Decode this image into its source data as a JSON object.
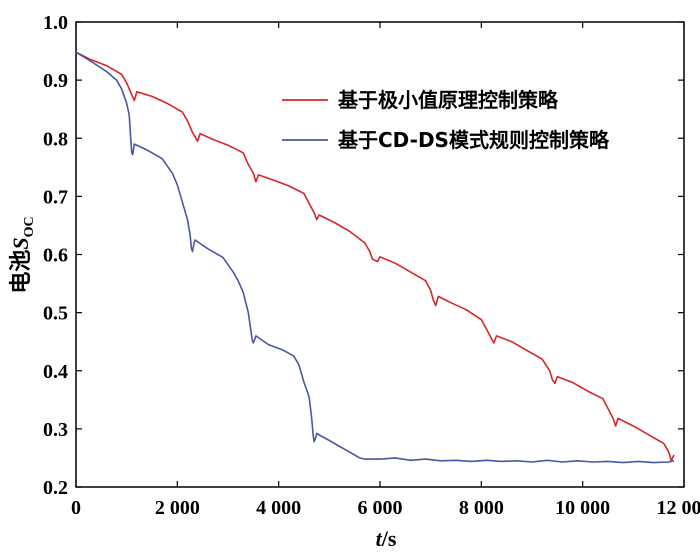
{
  "chart_data": {
    "type": "line",
    "title": "",
    "xlabel": "t/s",
    "xlabel_italic": "t",
    "xlabel_unit": "/s",
    "ylabel": "电池SOC",
    "ylabel_prefix": "电池",
    "ylabel_symbol": "S",
    "ylabel_sub": "OC",
    "xlim": [
      0,
      12000
    ],
    "ylim": [
      0.2,
      1.0
    ],
    "x_ticks": [
      0,
      2000,
      4000,
      6000,
      8000,
      10000,
      12000
    ],
    "x_tick_labels": [
      "0",
      "2 000",
      "4 000",
      "6 000",
      "8 000",
      "10 000",
      "12 000"
    ],
    "y_ticks": [
      0.2,
      0.3,
      0.4,
      0.5,
      0.6,
      0.7,
      0.8,
      0.9,
      1.0
    ],
    "y_tick_labels": [
      "0.2",
      "0.3",
      "0.4",
      "0.5",
      "0.6",
      "0.7",
      "0.8",
      "0.9",
      "1.0"
    ],
    "grid": false,
    "legend_position": "top-right",
    "series": [
      {
        "name": "基于极小值原理控制策略",
        "color": "#d62728",
        "x": [
          0,
          300,
          600,
          900,
          1000,
          1100,
          1150,
          1200,
          1500,
          1800,
          2100,
          2200,
          2300,
          2400,
          2450,
          2700,
          3000,
          3300,
          3400,
          3500,
          3550,
          3600,
          3900,
          4200,
          4500,
          4600,
          4700,
          4750,
          4800,
          5100,
          5400,
          5700,
          5800,
          5850,
          5950,
          6000,
          6300,
          6600,
          6900,
          7000,
          7050,
          7100,
          7150,
          7400,
          7700,
          8000,
          8100,
          8200,
          8250,
          8300,
          8600,
          8900,
          9200,
          9350,
          9400,
          9450,
          9500,
          9800,
          10100,
          10400,
          10500,
          10600,
          10650,
          10700,
          11000,
          11300,
          11600,
          11700,
          11750,
          11800
        ],
        "y": [
          0.948,
          0.935,
          0.925,
          0.91,
          0.895,
          0.875,
          0.865,
          0.88,
          0.872,
          0.86,
          0.845,
          0.83,
          0.81,
          0.795,
          0.808,
          0.798,
          0.788,
          0.775,
          0.755,
          0.74,
          0.725,
          0.737,
          0.728,
          0.718,
          0.705,
          0.688,
          0.672,
          0.66,
          0.668,
          0.655,
          0.64,
          0.62,
          0.605,
          0.592,
          0.588,
          0.596,
          0.585,
          0.57,
          0.555,
          0.538,
          0.522,
          0.512,
          0.528,
          0.517,
          0.505,
          0.488,
          0.472,
          0.455,
          0.448,
          0.46,
          0.45,
          0.435,
          0.42,
          0.4,
          0.385,
          0.378,
          0.39,
          0.38,
          0.365,
          0.352,
          0.335,
          0.318,
          0.305,
          0.318,
          0.305,
          0.29,
          0.275,
          0.26,
          0.245,
          0.255
        ]
      },
      {
        "name": "基于CD-DS模式规则控制策略",
        "color": "#4a56a6",
        "x": [
          0,
          300,
          600,
          800,
          900,
          1000,
          1050,
          1080,
          1100,
          1120,
          1150,
          1400,
          1700,
          1900,
          2000,
          2100,
          2200,
          2250,
          2280,
          2300,
          2330,
          2350,
          2600,
          2900,
          3100,
          3200,
          3300,
          3400,
          3450,
          3480,
          3500,
          3530,
          3550,
          3800,
          4100,
          4300,
          4400,
          4500,
          4600,
          4650,
          4680,
          4700,
          4730,
          4750,
          5000,
          5300,
          5500,
          5600,
          5700,
          6000,
          6300,
          6600,
          6900,
          7200,
          7500,
          7800,
          8100,
          8400,
          8700,
          9000,
          9300,
          9600,
          9900,
          10200,
          10500,
          10800,
          11100,
          11400,
          11700,
          11800
        ],
        "y": [
          0.948,
          0.932,
          0.915,
          0.9,
          0.885,
          0.86,
          0.84,
          0.8,
          0.775,
          0.772,
          0.79,
          0.78,
          0.765,
          0.74,
          0.72,
          0.69,
          0.66,
          0.635,
          0.61,
          0.605,
          0.62,
          0.625,
          0.61,
          0.595,
          0.57,
          0.555,
          0.535,
          0.5,
          0.47,
          0.452,
          0.448,
          0.455,
          0.46,
          0.445,
          0.435,
          0.425,
          0.41,
          0.38,
          0.355,
          0.32,
          0.29,
          0.278,
          0.285,
          0.292,
          0.28,
          0.265,
          0.255,
          0.25,
          0.248,
          0.248,
          0.25,
          0.246,
          0.248,
          0.245,
          0.246,
          0.244,
          0.246,
          0.244,
          0.245,
          0.243,
          0.246,
          0.243,
          0.245,
          0.243,
          0.244,
          0.242,
          0.244,
          0.242,
          0.243,
          0.245
        ]
      }
    ]
  }
}
